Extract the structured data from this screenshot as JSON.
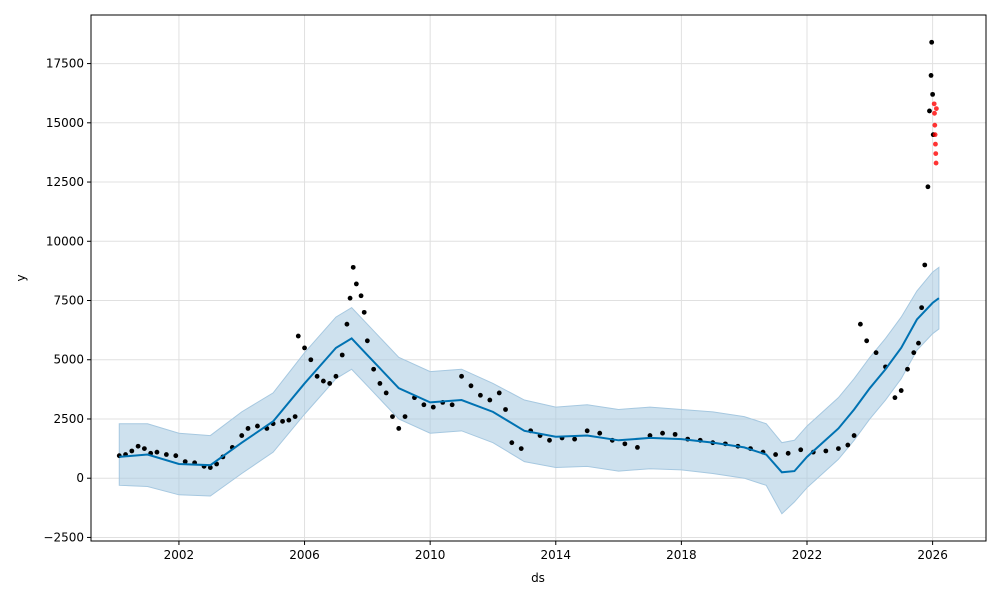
{
  "chart_data": {
    "type": "scatter",
    "xlabel": "ds",
    "ylabel": "y",
    "xlim": [
      1999.2,
      2027.7
    ],
    "ylim": [
      -2650,
      19550
    ],
    "x_ticks": [
      {
        "value": 2002,
        "label": "2002"
      },
      {
        "value": 2006,
        "label": "2006"
      },
      {
        "value": 2010,
        "label": "2010"
      },
      {
        "value": 2014,
        "label": "2014"
      },
      {
        "value": 2018,
        "label": "2018"
      },
      {
        "value": 2022,
        "label": "2022"
      },
      {
        "value": 2026,
        "label": "2026"
      }
    ],
    "y_ticks": [
      {
        "value": -2500,
        "label": "−2500"
      },
      {
        "value": 0,
        "label": "0"
      },
      {
        "value": 2500,
        "label": "2500"
      },
      {
        "value": 5000,
        "label": "5000"
      },
      {
        "value": 7500,
        "label": "7500"
      },
      {
        "value": 10000,
        "label": "10000"
      },
      {
        "value": 12500,
        "label": "12500"
      },
      {
        "value": 15000,
        "label": "15000"
      },
      {
        "value": 17500,
        "label": "17500"
      }
    ],
    "grid": true,
    "colors": {
      "observed": "#000000",
      "forecast_points": "#ff0000",
      "trend_line": "#0072b2",
      "uncertainty_band": "#a6c8e0"
    },
    "series": [
      {
        "role": "observed",
        "points": [
          [
            2000.1,
            950
          ],
          [
            2000.3,
            1000
          ],
          [
            2000.5,
            1150
          ],
          [
            2000.7,
            1350
          ],
          [
            2000.9,
            1250
          ],
          [
            2001.1,
            1050
          ],
          [
            2001.3,
            1100
          ],
          [
            2001.6,
            1000
          ],
          [
            2001.9,
            950
          ],
          [
            2002.2,
            700
          ],
          [
            2002.5,
            650
          ],
          [
            2002.8,
            500
          ],
          [
            2003.0,
            450
          ],
          [
            2003.2,
            600
          ],
          [
            2003.4,
            900
          ],
          [
            2003.7,
            1300
          ],
          [
            2004.0,
            1800
          ],
          [
            2004.2,
            2100
          ],
          [
            2004.5,
            2200
          ],
          [
            2004.8,
            2100
          ],
          [
            2005.0,
            2300
          ],
          [
            2005.3,
            2400
          ],
          [
            2005.5,
            2450
          ],
          [
            2005.7,
            2600
          ],
          [
            2005.8,
            6000
          ],
          [
            2006.0,
            5500
          ],
          [
            2006.2,
            5000
          ],
          [
            2006.4,
            4300
          ],
          [
            2006.6,
            4100
          ],
          [
            2006.8,
            4000
          ],
          [
            2007.0,
            4300
          ],
          [
            2007.2,
            5200
          ],
          [
            2007.35,
            6500
          ],
          [
            2007.45,
            7600
          ],
          [
            2007.55,
            8900
          ],
          [
            2007.65,
            8200
          ],
          [
            2007.8,
            7700
          ],
          [
            2007.9,
            7000
          ],
          [
            2008.0,
            5800
          ],
          [
            2008.2,
            4600
          ],
          [
            2008.4,
            4000
          ],
          [
            2008.6,
            3600
          ],
          [
            2008.8,
            2600
          ],
          [
            2009.0,
            2100
          ],
          [
            2009.2,
            2600
          ],
          [
            2009.5,
            3400
          ],
          [
            2009.8,
            3100
          ],
          [
            2010.1,
            3000
          ],
          [
            2010.4,
            3200
          ],
          [
            2010.7,
            3100
          ],
          [
            2011.0,
            4300
          ],
          [
            2011.3,
            3900
          ],
          [
            2011.6,
            3500
          ],
          [
            2011.9,
            3300
          ],
          [
            2012.2,
            3600
          ],
          [
            2012.4,
            2900
          ],
          [
            2012.6,
            1500
          ],
          [
            2012.9,
            1250
          ],
          [
            2013.2,
            2000
          ],
          [
            2013.5,
            1800
          ],
          [
            2013.8,
            1600
          ],
          [
            2014.2,
            1700
          ],
          [
            2014.6,
            1650
          ],
          [
            2015.0,
            2000
          ],
          [
            2015.4,
            1900
          ],
          [
            2015.8,
            1600
          ],
          [
            2016.2,
            1450
          ],
          [
            2016.6,
            1300
          ],
          [
            2017.0,
            1800
          ],
          [
            2017.4,
            1900
          ],
          [
            2017.8,
            1850
          ],
          [
            2018.2,
            1650
          ],
          [
            2018.6,
            1600
          ],
          [
            2019.0,
            1500
          ],
          [
            2019.4,
            1450
          ],
          [
            2019.8,
            1350
          ],
          [
            2020.2,
            1250
          ],
          [
            2020.6,
            1100
          ],
          [
            2021.0,
            1000
          ],
          [
            2021.4,
            1050
          ],
          [
            2021.8,
            1200
          ],
          [
            2022.2,
            1100
          ],
          [
            2022.6,
            1150
          ],
          [
            2023.0,
            1250
          ],
          [
            2023.3,
            1400
          ],
          [
            2023.5,
            1800
          ],
          [
            2023.7,
            6500
          ],
          [
            2023.9,
            5800
          ],
          [
            2024.2,
            5300
          ],
          [
            2024.5,
            4700
          ],
          [
            2024.8,
            3400
          ],
          [
            2025.0,
            3700
          ],
          [
            2025.2,
            4600
          ],
          [
            2025.4,
            5300
          ],
          [
            2025.55,
            5700
          ],
          [
            2025.65,
            7200
          ],
          [
            2025.75,
            9000
          ],
          [
            2025.85,
            12300
          ],
          [
            2025.9,
            15500
          ],
          [
            2025.95,
            17000
          ],
          [
            2025.97,
            18400
          ],
          [
            2026.0,
            16200
          ],
          [
            2026.02,
            14500
          ]
        ]
      },
      {
        "role": "forecast_points",
        "points": [
          [
            2026.05,
            15800
          ],
          [
            2026.06,
            15400
          ],
          [
            2026.07,
            14900
          ],
          [
            2026.08,
            14500
          ],
          [
            2026.09,
            14100
          ],
          [
            2026.1,
            13700
          ],
          [
            2026.11,
            13300
          ],
          [
            2026.12,
            15600
          ]
        ]
      },
      {
        "role": "trend_line",
        "points": [
          [
            2000.1,
            900
          ],
          [
            2001.0,
            1000
          ],
          [
            2002.0,
            600
          ],
          [
            2003.0,
            550
          ],
          [
            2004.0,
            1500
          ],
          [
            2005.0,
            2400
          ],
          [
            2006.0,
            4000
          ],
          [
            2007.0,
            5500
          ],
          [
            2007.5,
            5900
          ],
          [
            2008.0,
            5200
          ],
          [
            2009.0,
            3800
          ],
          [
            2010.0,
            3200
          ],
          [
            2011.0,
            3300
          ],
          [
            2012.0,
            2800
          ],
          [
            2013.0,
            2000
          ],
          [
            2014.0,
            1750
          ],
          [
            2015.0,
            1800
          ],
          [
            2016.0,
            1600
          ],
          [
            2017.0,
            1700
          ],
          [
            2018.0,
            1650
          ],
          [
            2019.0,
            1500
          ],
          [
            2020.0,
            1300
          ],
          [
            2020.7,
            1000
          ],
          [
            2021.2,
            250
          ],
          [
            2021.6,
            300
          ],
          [
            2022.0,
            900
          ],
          [
            2022.5,
            1500
          ],
          [
            2023.0,
            2100
          ],
          [
            2023.5,
            2900
          ],
          [
            2024.0,
            3800
          ],
          [
            2024.5,
            4600
          ],
          [
            2025.0,
            5500
          ],
          [
            2025.5,
            6700
          ],
          [
            2026.0,
            7400
          ],
          [
            2026.2,
            7600
          ]
        ]
      },
      {
        "role": "uncertainty_band",
        "upper": [
          [
            2000.1,
            2300
          ],
          [
            2001.0,
            2300
          ],
          [
            2002.0,
            1900
          ],
          [
            2003.0,
            1800
          ],
          [
            2004.0,
            2800
          ],
          [
            2005.0,
            3600
          ],
          [
            2006.0,
            5300
          ],
          [
            2007.0,
            6800
          ],
          [
            2007.5,
            7200
          ],
          [
            2008.0,
            6500
          ],
          [
            2009.0,
            5100
          ],
          [
            2010.0,
            4500
          ],
          [
            2011.0,
            4600
          ],
          [
            2012.0,
            4000
          ],
          [
            2013.0,
            3300
          ],
          [
            2014.0,
            3000
          ],
          [
            2015.0,
            3100
          ],
          [
            2016.0,
            2900
          ],
          [
            2017.0,
            3000
          ],
          [
            2018.0,
            2900
          ],
          [
            2019.0,
            2800
          ],
          [
            2020.0,
            2600
          ],
          [
            2020.7,
            2300
          ],
          [
            2021.2,
            1500
          ],
          [
            2021.6,
            1600
          ],
          [
            2022.0,
            2200
          ],
          [
            2022.5,
            2800
          ],
          [
            2023.0,
            3400
          ],
          [
            2023.5,
            4200
          ],
          [
            2024.0,
            5100
          ],
          [
            2024.5,
            5900
          ],
          [
            2025.0,
            6800
          ],
          [
            2025.5,
            7900
          ],
          [
            2026.0,
            8700
          ],
          [
            2026.2,
            8900
          ]
        ],
        "lower": [
          [
            2000.1,
            -300
          ],
          [
            2001.0,
            -350
          ],
          [
            2002.0,
            -700
          ],
          [
            2003.0,
            -750
          ],
          [
            2004.0,
            200
          ],
          [
            2005.0,
            1100
          ],
          [
            2006.0,
            2700
          ],
          [
            2007.0,
            4200
          ],
          [
            2007.5,
            4600
          ],
          [
            2008.0,
            3900
          ],
          [
            2009.0,
            2500
          ],
          [
            2010.0,
            1900
          ],
          [
            2011.0,
            2000
          ],
          [
            2012.0,
            1500
          ],
          [
            2013.0,
            700
          ],
          [
            2014.0,
            450
          ],
          [
            2015.0,
            500
          ],
          [
            2016.0,
            300
          ],
          [
            2017.0,
            400
          ],
          [
            2018.0,
            350
          ],
          [
            2019.0,
            200
          ],
          [
            2020.0,
            0
          ],
          [
            2020.7,
            -300
          ],
          [
            2021.2,
            -1500
          ],
          [
            2021.6,
            -1000
          ],
          [
            2022.0,
            -400
          ],
          [
            2022.5,
            200
          ],
          [
            2023.0,
            800
          ],
          [
            2023.5,
            1600
          ],
          [
            2024.0,
            2500
          ],
          [
            2024.5,
            3300
          ],
          [
            2025.0,
            4200
          ],
          [
            2025.5,
            5400
          ],
          [
            2026.0,
            6100
          ],
          [
            2026.2,
            6300
          ]
        ]
      }
    ]
  }
}
